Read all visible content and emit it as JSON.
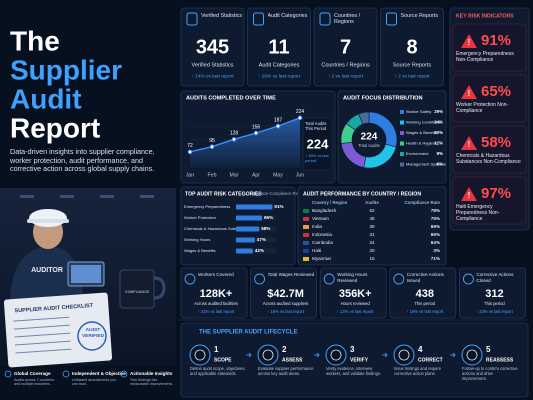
{
  "header": {
    "title_lines": [
      "The",
      "Supplier",
      "Audit",
      "Report"
    ],
    "subtitle": "Data-driven insights into supplier compliance, worker protection, audit performance, and corrective action across global supply chains."
  },
  "illustration": {
    "checklist_title": "SUPPLIER AUDIT CHECKLIST",
    "stamp": "AUDIT VERIFIED",
    "vest_label": "AUDITOR",
    "mug_label": "COMPLIANCE"
  },
  "features": [
    {
      "title": "Global Coverage",
      "text": "Audits across 7 countries and multiple industries."
    },
    {
      "title": "Independent & Objective",
      "text": "Unbiased assessments you can trust."
    },
    {
      "title": "Actionable Insights",
      "text": "Turn findings into measurable improvements."
    }
  ],
  "kpis": [
    {
      "heading": "Verified Statistics",
      "value": "345",
      "caption": "Verified Statistics",
      "change": "↑ 14% vs last report"
    },
    {
      "heading": "Audit Categories",
      "value": "11",
      "caption": "Audit Categories",
      "change": "↑ 10% vs last report"
    },
    {
      "heading": "Countries / Regions",
      "value": "7",
      "caption": "Countries / Regions",
      "change": "↑ 2 vs last report"
    },
    {
      "heading": "Source Reports",
      "value": "8",
      "caption": "Source Reports",
      "change": "↑ 2 vs last report"
    }
  ],
  "risk_indicators": {
    "title": "KEY RISK INDICATORS",
    "items": [
      {
        "value": "91%",
        "label": "Emergency Preparedness Non-Compliance"
      },
      {
        "value": "65%",
        "label": "Worker Protection Non-Compliance"
      },
      {
        "value": "58%",
        "label": "Chemicals & Hazardous Substances Non-Compliance"
      },
      {
        "value": "97%",
        "label": "Haiti Emergency Preparedness Non-Compliance"
      }
    ]
  },
  "chart_data": [
    {
      "type": "line",
      "title": "AUDITS COMPLETED OVER TIME",
      "categories": [
        "Jan",
        "Feb",
        "Mar",
        "Apr",
        "May",
        "Jun"
      ],
      "values": [
        72,
        95,
        128,
        156,
        187,
        224
      ],
      "ylim": [
        0,
        250
      ],
      "color": "#3d8dff",
      "total_label": "Total Audits This Period",
      "total": 224,
      "total_change": "↑ 18% vs last period"
    },
    {
      "type": "pie",
      "title": "AUDIT FOCUS DISTRIBUTION",
      "center_value": 224,
      "center_label": "Total Audits",
      "categories": [
        "Worker Safety",
        "Working Conditions",
        "Wages & Benefits",
        "Health & Hygiene",
        "Environment",
        "Management Systems"
      ],
      "values": [
        29,
        24,
        20,
        12,
        9,
        6
      ],
      "value_labels": [
        "29%",
        "24%",
        "20%",
        "12%",
        "9%",
        "6%"
      ],
      "colors": [
        "#2f7de1",
        "#22c3e6",
        "#7b5cd6",
        "#3ecf8e",
        "#1aa6a6",
        "#4a6a9a"
      ]
    },
    {
      "type": "bar",
      "title": "TOP AUDIT RISK CATEGORIES",
      "subtitle": "(By Non-Compliance Rate)",
      "categories": [
        "Emergency Preparedness",
        "Worker Protection",
        "Chemicals & Hazardous Substances",
        "Working Hours",
        "Wages & Benefits"
      ],
      "values": [
        91,
        65,
        58,
        47,
        42
      ],
      "value_labels": [
        "91%",
        "65%",
        "58%",
        "47%",
        "42%"
      ],
      "xlim": [
        0,
        100
      ],
      "color": "#2f7de1"
    }
  ],
  "country_table": {
    "title": "AUDIT PERFORMANCE BY COUNTRY / REGION",
    "columns": [
      "Country / Region",
      "Audits",
      "Compliance Rate"
    ],
    "rows": [
      [
        "Bangladesh",
        "62",
        "78%"
      ],
      [
        "Vietnam",
        "48",
        "75%"
      ],
      [
        "India",
        "39",
        "69%"
      ],
      [
        "Indonesia",
        "31",
        "66%"
      ],
      [
        "Cambodia",
        "24",
        "64%"
      ],
      [
        "Haiti",
        "20",
        "3%"
      ],
      [
        "Myanmar",
        "15",
        "71%"
      ]
    ]
  },
  "bottom_kpis": [
    {
      "heading": "Workers Covered",
      "value": "128K+",
      "caption": "Across audited facilities",
      "change": "↑ 21% vs last report"
    },
    {
      "heading": "Total Wages Reviewed",
      "value": "$42.7M",
      "caption": "Across audited suppliers",
      "change": "↑ 16% vs last report"
    },
    {
      "heading": "Working Hours Reviewed",
      "value": "356K+",
      "caption": "Hours reviewed",
      "change": "↑ 13% vs last report"
    },
    {
      "heading": "Corrective Actions Issued",
      "value": "438",
      "caption": "This period",
      "change": "↑ 19% vs last report"
    },
    {
      "heading": "Corrective Actions Closed",
      "value": "312",
      "caption": "This period",
      "change": "↑ 23% vs last report"
    }
  ],
  "lifecycle": {
    "title": "THE SUPPLIER AUDIT LIFECYCLE",
    "steps": [
      {
        "number": "1",
        "title": "SCOPE",
        "text": "Define audit scope, objectives, and applicable standards."
      },
      {
        "number": "2",
        "title": "ASSESS",
        "text": "Evaluate supplier performance across key audit areas."
      },
      {
        "number": "3",
        "title": "VERIFY",
        "text": "Verify evidence, interview workers, and validate findings."
      },
      {
        "number": "4",
        "title": "CORRECT",
        "text": "Issue findings and require corrective action plans."
      },
      {
        "number": "5",
        "title": "REASSESS",
        "text": "Follow-up to confirm corrective actions and drive improvement."
      }
    ]
  }
}
